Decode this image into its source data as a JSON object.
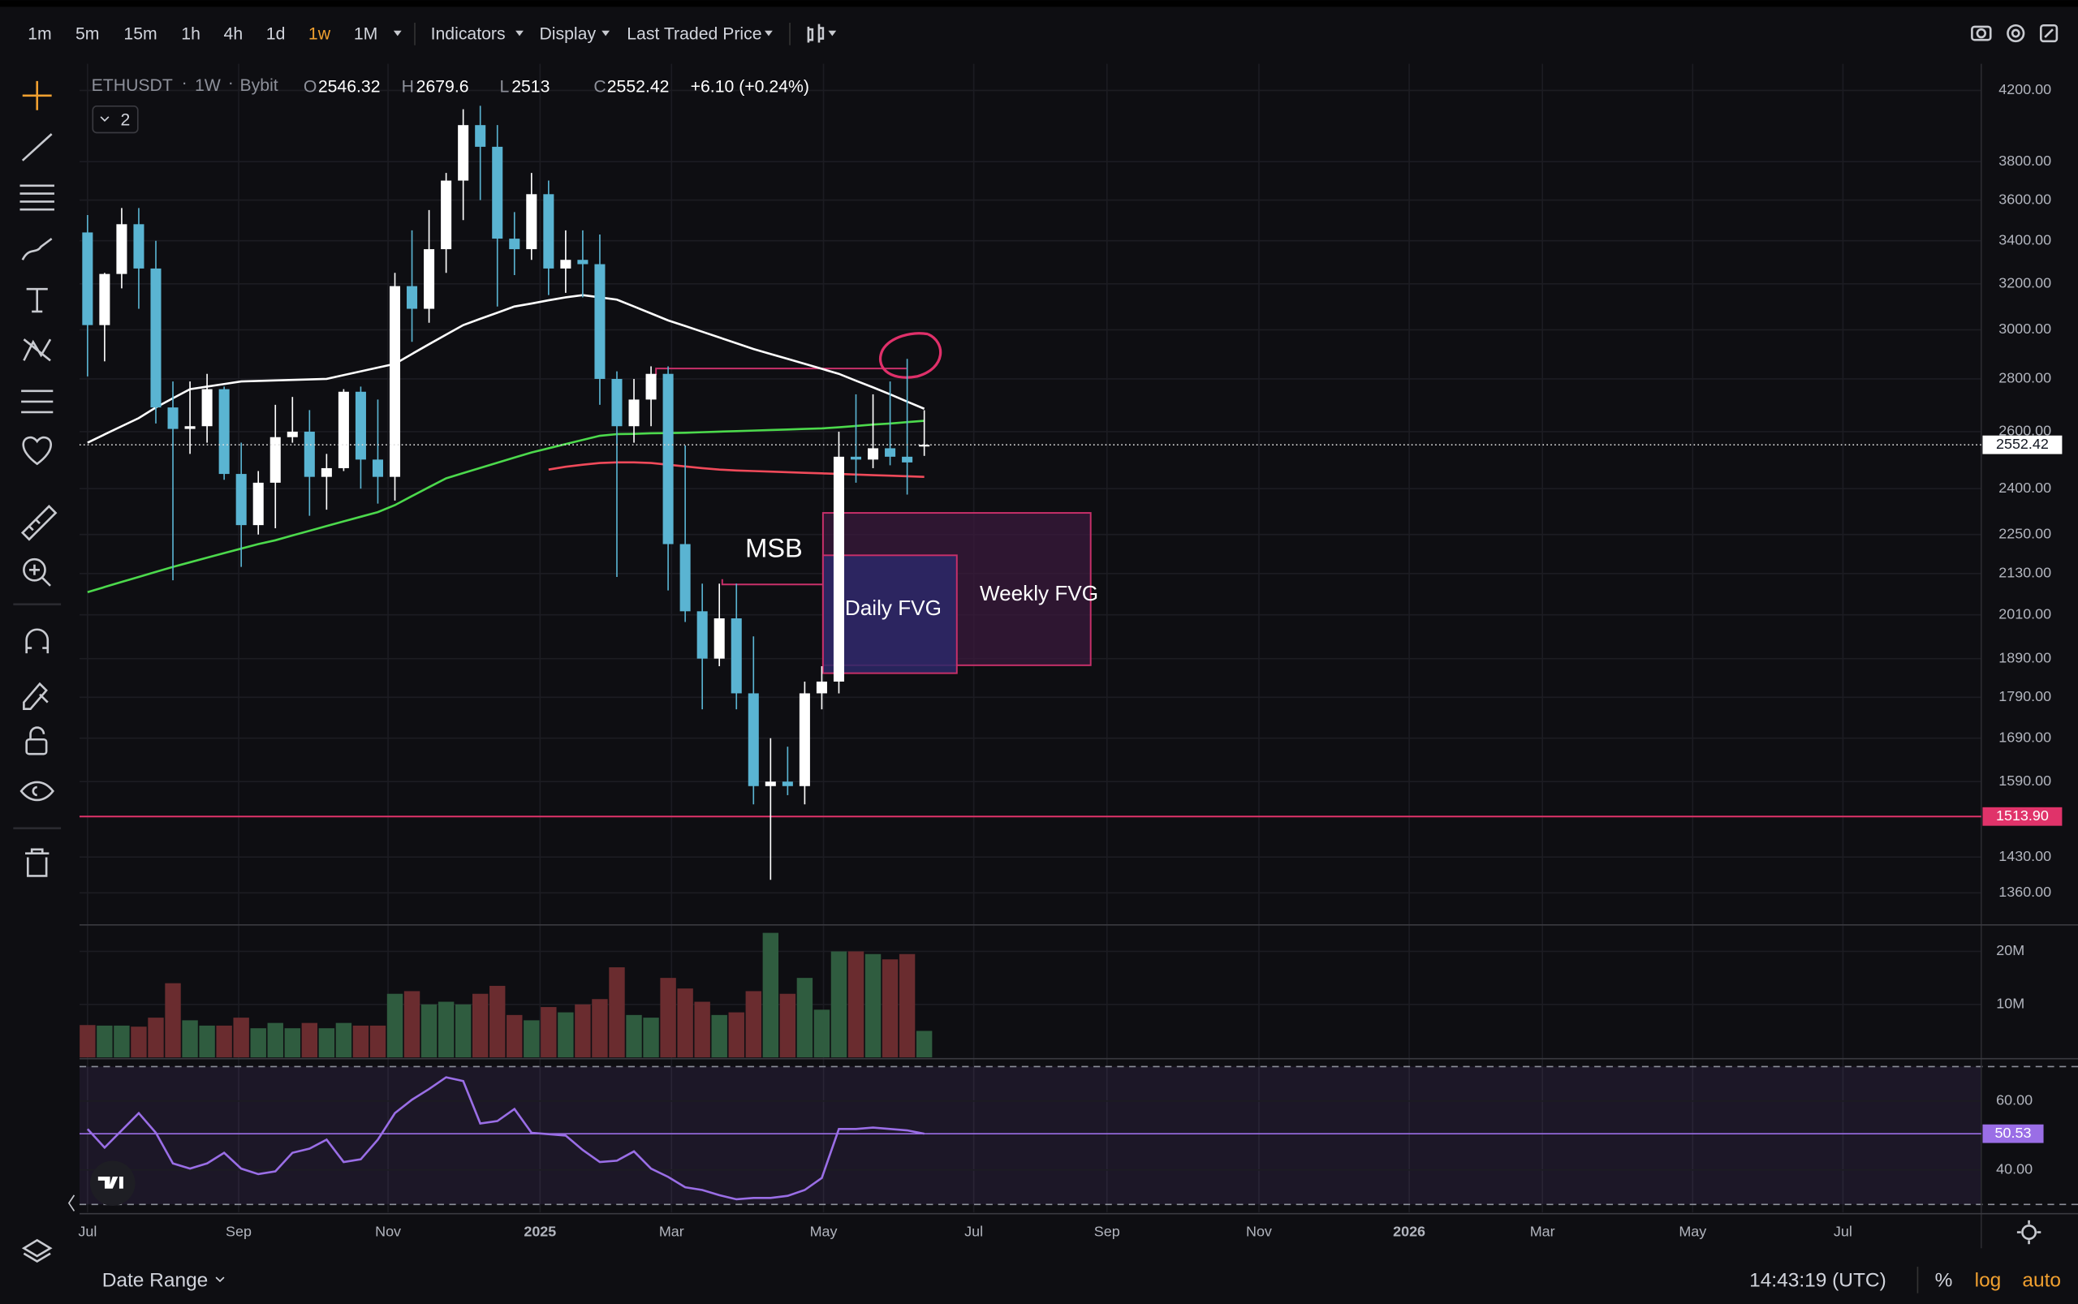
{
  "toolbar": {
    "intervals": [
      "1m",
      "5m",
      "15m",
      "1h",
      "4h",
      "1d",
      "1w",
      "1M"
    ],
    "menus": [
      "Indicators",
      "Display",
      "Last Traded Price"
    ]
  },
  "footer": {
    "date_range": "Date Range",
    "clock": "14:43:19 (UTC)",
    "percent": "%",
    "log": "log",
    "auto": "auto"
  },
  "legend": {
    "symbol": "ETHUSDT",
    "interval": "1W",
    "exchange": "Bybit",
    "ohlc_labels": [
      "O",
      "H",
      "L",
      "C"
    ],
    "change": "+6.10 (+0.24%)",
    "collapsed_count": "2"
  },
  "annotations": {
    "msb": "MSB",
    "daily_fvg": "Daily FVG",
    "weekly_fvg": "Weekly FVG"
  },
  "chart_data": {
    "type": "candlestick",
    "log_scale": true,
    "grid": true,
    "up_color": "#ffffff",
    "down_color": "#5ab4d2",
    "volume_up_color": "#2f5c3f",
    "volume_down_color": "#6a2c2f",
    "xlim": [
      -0.47,
      110.9
    ],
    "xticks": [
      {
        "value": 0,
        "label": "Jul"
      },
      {
        "value": 8.85,
        "label": "Sep"
      },
      {
        "value": 17.6,
        "label": "Nov"
      },
      {
        "value": 26.5,
        "label": "2025"
      },
      {
        "value": 34.2,
        "label": "Mar"
      },
      {
        "value": 43.1,
        "label": "May"
      },
      {
        "value": 51.9,
        "label": "Jul"
      },
      {
        "value": 59.7,
        "label": "Sep"
      },
      {
        "value": 68.6,
        "label": "Nov"
      },
      {
        "value": 77.4,
        "label": "2026"
      },
      {
        "value": 85.2,
        "label": "Mar"
      },
      {
        "value": 94.0,
        "label": "May"
      },
      {
        "value": 102.8,
        "label": "Jul"
      }
    ],
    "ylim": [
      1300,
      4360
    ],
    "yticks": [
      {
        "value": 4200,
        "label": "4200.00"
      },
      {
        "value": 3800,
        "label": "3800.00"
      },
      {
        "value": 3600,
        "label": "3600.00"
      },
      {
        "value": 3400,
        "label": "3400.00"
      },
      {
        "value": 3200,
        "label": "3200.00"
      },
      {
        "value": 3000,
        "label": "3000.00"
      },
      {
        "value": 2800,
        "label": "2800.00"
      },
      {
        "value": 2600,
        "label": "2600.00"
      },
      {
        "value": 2400,
        "label": "2400.00"
      },
      {
        "value": 2250,
        "label": "2250.00"
      },
      {
        "value": 2130,
        "label": "2130.00"
      },
      {
        "value": 2010,
        "label": "2010.00"
      },
      {
        "value": 1890,
        "label": "1890.00"
      },
      {
        "value": 1790,
        "label": "1790.00"
      },
      {
        "value": 1690,
        "label": "1690.00"
      },
      {
        "value": 1590,
        "label": "1590.00"
      },
      {
        "value": 1430,
        "label": "1430.00"
      },
      {
        "value": 1360,
        "label": "1360.00"
      }
    ],
    "open": [
      3440,
      3020,
      3245,
      3480,
      3270,
      2690,
      2610,
      2620,
      2760,
      2450,
      2280,
      2420,
      2580,
      2600,
      2440,
      2470,
      2750,
      2500,
      2440,
      3190,
      3090,
      3360,
      3700,
      4000,
      3880,
      3410,
      3360,
      3630,
      3270,
      3310,
      3290,
      2800,
      2620,
      2720,
      2820,
      2220,
      2020,
      1890,
      2000,
      1800,
      1580,
      1590,
      1580,
      1800,
      1830,
      2510,
      2500,
      2540,
      2510,
      2546.32
    ],
    "high": [
      3525,
      3250,
      3560,
      3560,
      3400,
      2790,
      2790,
      2820,
      2770,
      2560,
      2460,
      2700,
      2730,
      2680,
      2520,
      2760,
      2770,
      2720,
      3250,
      3450,
      3550,
      3740,
      4090,
      4110,
      4000,
      3540,
      3740,
      3700,
      3450,
      3450,
      3430,
      2830,
      2800,
      2850,
      2850,
      2550,
      2100,
      2100,
      2100,
      1950,
      1690,
      1670,
      1830,
      1870,
      2600,
      2740,
      2740,
      2790,
      2880,
      2679.6
    ],
    "low": [
      2810,
      2870,
      3180,
      3090,
      2630,
      2110,
      2520,
      2560,
      2430,
      2150,
      2250,
      2270,
      2560,
      2310,
      2330,
      2460,
      2400,
      2350,
      2360,
      2950,
      3030,
      3250,
      3500,
      3600,
      3100,
      3240,
      3310,
      3150,
      3160,
      3140,
      2700,
      2120,
      2560,
      2620,
      2080,
      1990,
      1760,
      1870,
      1760,
      1540,
      1385,
      1560,
      1540,
      1760,
      1800,
      2420,
      2470,
      2480,
      2380,
      2513
    ],
    "close": [
      3020,
      3245,
      3480,
      3270,
      2690,
      2610,
      2620,
      2760,
      2450,
      2280,
      2420,
      2580,
      2600,
      2440,
      2470,
      2750,
      2500,
      2440,
      3190,
      3090,
      3360,
      3700,
      4000,
      3880,
      3410,
      3360,
      3630,
      3270,
      3310,
      3290,
      2800,
      2620,
      2720,
      2820,
      2220,
      2020,
      1890,
      2000,
      1800,
      1580,
      1590,
      1580,
      1800,
      1830,
      2510,
      2500,
      2540,
      2510,
      2490,
      2552.42
    ],
    "moving_averages": [
      {
        "color": "#ffffff",
        "values": [
          2560,
          2590,
          2620,
          2650,
          2690,
          2725,
          2760,
          2770,
          2780,
          2790,
          2792,
          2794,
          2796,
          2798,
          2800,
          2815,
          2830,
          2845,
          2860,
          2900,
          2940,
          2980,
          3020,
          3047,
          3073,
          3100,
          3113,
          3127,
          3140,
          3150,
          3140,
          3130,
          3100,
          3070,
          3040,
          3016,
          2992,
          2968,
          2944,
          2920,
          2900,
          2880,
          2860,
          2840,
          2820,
          2793,
          2767,
          2740,
          2712,
          2685
        ]
      },
      {
        "color": "#4cd94c",
        "values": [
          2075,
          2090,
          2105,
          2120,
          2135,
          2150,
          2164,
          2178,
          2192,
          2206,
          2220,
          2232,
          2247,
          2262,
          2277,
          2292,
          2307,
          2322,
          2345,
          2375,
          2405,
          2435,
          2453,
          2471,
          2489,
          2507,
          2525,
          2540,
          2555,
          2570,
          2585,
          2591,
          2592,
          2594,
          2595,
          2596,
          2598,
          2600,
          2602,
          2604,
          2606,
          2608,
          2610,
          2612,
          2616,
          2621,
          2626,
          2630,
          2635,
          2640
        ]
      },
      {
        "color": "#f04a5a",
        "values": [
          null,
          null,
          null,
          null,
          null,
          null,
          null,
          null,
          null,
          null,
          null,
          null,
          null,
          null,
          null,
          null,
          null,
          null,
          null,
          null,
          null,
          null,
          null,
          null,
          null,
          null,
          null,
          2465,
          2475,
          2482,
          2488,
          2490,
          2490,
          2488,
          2482,
          2476,
          2470,
          2465,
          2462,
          2460,
          2458,
          2456,
          2454,
          2452,
          2450,
          2448,
          2446,
          2444,
          2442,
          2440
        ]
      }
    ],
    "hline": {
      "value": 1513.9,
      "label": "1513.90",
      "color": "#e0336a"
    },
    "volume": {
      "ylim": [
        0,
        24500000
      ],
      "yticks": [
        {
          "value": 10000000,
          "label": "10M"
        },
        {
          "value": 20000000,
          "label": "20M"
        }
      ],
      "values": [
        6100000,
        6000000,
        6000000,
        5800000,
        7500000,
        14000000,
        7000000,
        6000000,
        6000000,
        7500000,
        5500000,
        6500000,
        5500000,
        6500000,
        5500000,
        6500000,
        6000000,
        6000000,
        12000000,
        12500000,
        10000000,
        10500000,
        10000000,
        12000000,
        13500000,
        8000000,
        7000000,
        9500000,
        8500000,
        10000000,
        11000000,
        17000000,
        8000000,
        7500000,
        15000000,
        13000000,
        10500000,
        8000000,
        8500000,
        12500000,
        23500000,
        12000000,
        15000000,
        9000000,
        20000000,
        20000000,
        19500000,
        18500000,
        19500000,
        5000000
      ]
    },
    "rsi": {
      "color": "#9a6ee6",
      "ylim": [
        27.7,
        71.9
      ],
      "yticks": [
        {
          "value": 60,
          "label": "60.00"
        },
        {
          "value": 40,
          "label": "40.00"
        }
      ],
      "bands": [
        70,
        30
      ],
      "values": [
        51.9,
        46.5,
        51.5,
        56.5,
        50.8,
        41.9,
        40.4,
        41.9,
        45.0,
        40.4,
        38.8,
        39.6,
        45.0,
        46.2,
        48.8,
        42.3,
        43.1,
        48.8,
        56.5,
        60.4,
        63.5,
        66.9,
        65.8,
        53.5,
        54.2,
        57.7,
        50.8,
        50.4,
        50.0,
        45.8,
        42.3,
        42.7,
        45.4,
        40.4,
        38.0,
        35.0,
        34.2,
        32.7,
        31.5,
        31.9,
        31.9,
        32.5,
        34.2,
        37.7,
        51.9,
        51.9,
        52.3,
        51.9,
        51.5,
        50.53
      ]
    }
  }
}
